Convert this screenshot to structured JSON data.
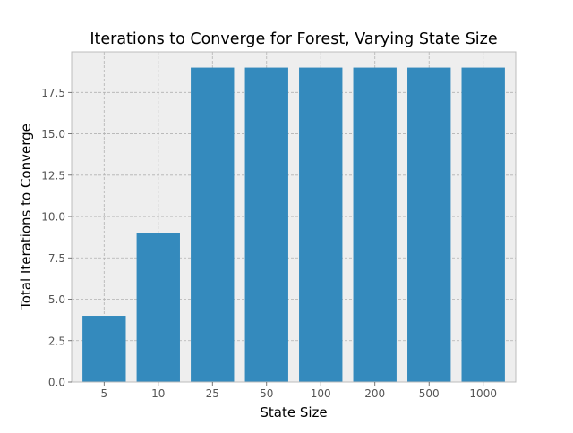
{
  "chart_data": {
    "type": "bar",
    "title": "Iterations to Converge for Forest, Varying State Size",
    "xlabel": "State Size",
    "ylabel": "Total Iterations to Converge",
    "categories": [
      "5",
      "10",
      "25",
      "50",
      "100",
      "200",
      "500",
      "1000"
    ],
    "values": [
      4,
      9,
      19,
      19,
      19,
      19,
      19,
      19
    ],
    "ylim": [
      0,
      19.95
    ],
    "yticks": [
      "0.0",
      "2.5",
      "5.0",
      "7.5",
      "10.0",
      "12.5",
      "15.0",
      "17.5"
    ],
    "grid": true,
    "legend": "none",
    "colors": {
      "bar": "#348ABD",
      "plot_background": "#EEEEEE",
      "grid": "#B2B2B2",
      "axis_edge": "#BCBCBC",
      "text": "#000000",
      "tick": "#555555"
    }
  }
}
